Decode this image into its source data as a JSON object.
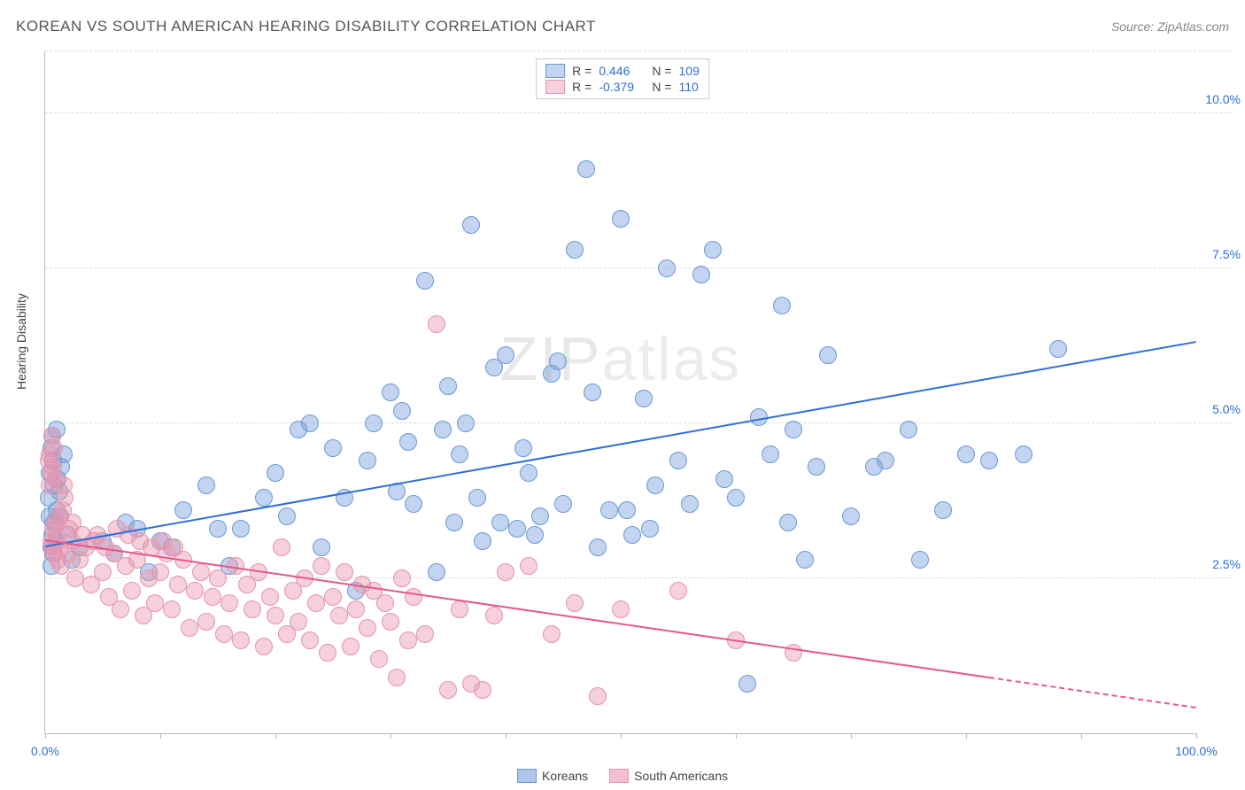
{
  "title": "KOREAN VS SOUTH AMERICAN HEARING DISABILITY CORRELATION CHART",
  "source_prefix": "Source: ",
  "source_name": "ZipAtlas.com",
  "ylabel": "Hearing Disability",
  "watermark_bold": "ZIP",
  "watermark_thin": "atlas",
  "xlim": [
    0,
    100
  ],
  "ylim": [
    0,
    11
  ],
  "x_ticks": [
    0,
    50,
    100
  ],
  "x_tick_labels": [
    "0.0%",
    "",
    "100.0%"
  ],
  "x_minor_ticks": [
    10,
    20,
    30,
    40,
    60,
    70,
    80,
    90
  ],
  "y_ticks": [
    2.5,
    5.0,
    7.5,
    10.0
  ],
  "y_tick_labels": [
    "2.5%",
    "5.0%",
    "7.5%",
    "10.0%"
  ],
  "x_tick_label_color": "#2e6fd6",
  "y_tick_label_color": "#2e6fd6",
  "grid_color": "#dddddd",
  "background_color": "#ffffff",
  "series": [
    {
      "name": "Koreans",
      "fill": "rgba(120,160,220,0.45)",
      "stroke": "#6a9ad4",
      "line_color": "#2e6fd6",
      "marker_r": 9,
      "R_label": "R =",
      "R": "0.446",
      "N_label": "N =",
      "N": "109",
      "trend": {
        "x0": 0,
        "y0": 3.0,
        "x1": 100,
        "y1": 6.3,
        "solid_to": 100
      },
      "points": [
        [
          0.5,
          3.0
        ],
        [
          0.6,
          3.2
        ],
        [
          0.7,
          2.9
        ],
        [
          0.8,
          3.4
        ],
        [
          0.9,
          3.1
        ],
        [
          1.0,
          3.6
        ],
        [
          1.1,
          4.1
        ],
        [
          1.2,
          3.9
        ],
        [
          1.3,
          3.5
        ],
        [
          1.4,
          4.3
        ],
        [
          1.6,
          4.5
        ],
        [
          0.4,
          4.2
        ],
        [
          0.5,
          4.6
        ],
        [
          0.3,
          3.8
        ],
        [
          2.0,
          3.2
        ],
        [
          2.3,
          2.8
        ],
        [
          3.0,
          3.0
        ],
        [
          5.0,
          3.1
        ],
        [
          6.0,
          2.9
        ],
        [
          7.0,
          3.4
        ],
        [
          8.0,
          3.3
        ],
        [
          9.0,
          2.6
        ],
        [
          10.0,
          3.1
        ],
        [
          11.0,
          3.0
        ],
        [
          12.0,
          3.6
        ],
        [
          14.0,
          4.0
        ],
        [
          15.0,
          3.3
        ],
        [
          16.0,
          2.7
        ],
        [
          17.0,
          3.3
        ],
        [
          19.0,
          3.8
        ],
        [
          20.0,
          4.2
        ],
        [
          21.0,
          3.5
        ],
        [
          22.0,
          4.9
        ],
        [
          23.0,
          5.0
        ],
        [
          24.0,
          3.0
        ],
        [
          25.0,
          4.6
        ],
        [
          26.0,
          3.8
        ],
        [
          27.0,
          2.3
        ],
        [
          28.0,
          4.4
        ],
        [
          30.0,
          5.5
        ],
        [
          31.0,
          5.2
        ],
        [
          32.0,
          3.7
        ],
        [
          33.0,
          7.3
        ],
        [
          34.0,
          2.6
        ],
        [
          35.0,
          5.6
        ],
        [
          36.0,
          4.5
        ],
        [
          37.0,
          8.2
        ],
        [
          38.0,
          3.1
        ],
        [
          39.0,
          5.9
        ],
        [
          40.0,
          6.1
        ],
        [
          41.0,
          3.3
        ],
        [
          42.0,
          4.2
        ],
        [
          43.0,
          3.5
        ],
        [
          44.0,
          5.8
        ],
        [
          45.0,
          3.7
        ],
        [
          46.0,
          7.8
        ],
        [
          47.0,
          9.1
        ],
        [
          48.0,
          3.0
        ],
        [
          49.0,
          3.6
        ],
        [
          50.0,
          8.3
        ],
        [
          51.0,
          3.2
        ],
        [
          52.0,
          5.4
        ],
        [
          53.0,
          4.0
        ],
        [
          54.0,
          7.5
        ],
        [
          55.0,
          4.4
        ],
        [
          56.0,
          3.7
        ],
        [
          57.0,
          7.4
        ],
        [
          58.0,
          7.8
        ],
        [
          59.0,
          4.1
        ],
        [
          60.0,
          3.8
        ],
        [
          61.0,
          0.8
        ],
        [
          62.0,
          5.1
        ],
        [
          63.0,
          4.5
        ],
        [
          64.0,
          6.9
        ],
        [
          65.0,
          4.9
        ],
        [
          66.0,
          2.8
        ],
        [
          67.0,
          4.3
        ],
        [
          68.0,
          6.1
        ],
        [
          70.0,
          3.5
        ],
        [
          72.0,
          4.3
        ],
        [
          73.0,
          4.4
        ],
        [
          75.0,
          4.9
        ],
        [
          76.0,
          2.8
        ],
        [
          78.0,
          3.6
        ],
        [
          80.0,
          4.5
        ],
        [
          82.0,
          4.4
        ],
        [
          85.0,
          4.5
        ],
        [
          88.0,
          6.2
        ],
        [
          44.5,
          6.0
        ],
        [
          42.5,
          3.2
        ],
        [
          30.5,
          3.9
        ],
        [
          31.5,
          4.7
        ],
        [
          34.5,
          4.9
        ],
        [
          36.5,
          5.0
        ],
        [
          28.5,
          5.0
        ],
        [
          47.5,
          5.5
        ],
        [
          50.5,
          3.6
        ],
        [
          37.5,
          3.8
        ],
        [
          35.5,
          3.4
        ],
        [
          0.6,
          4.8
        ],
        [
          0.7,
          4.4
        ],
        [
          0.8,
          4.0
        ],
        [
          0.4,
          3.5
        ],
        [
          0.5,
          2.7
        ],
        [
          1.0,
          4.9
        ],
        [
          39.5,
          3.4
        ],
        [
          41.5,
          4.6
        ],
        [
          52.5,
          3.3
        ],
        [
          64.5,
          3.4
        ]
      ]
    },
    {
      "name": "South Americans",
      "fill": "rgba(235,150,175,0.45)",
      "stroke": "#e295ab",
      "line_color": "#e5588a",
      "marker_r": 9,
      "R_label": "R =",
      "R": "-0.379",
      "N_label": "N =",
      "N": "110",
      "trend": {
        "x0": 0,
        "y0": 3.1,
        "x1": 100,
        "y1": 0.4,
        "solid_to": 82
      },
      "points": [
        [
          0.5,
          3.1
        ],
        [
          0.6,
          3.0
        ],
        [
          0.7,
          3.3
        ],
        [
          0.8,
          2.9
        ],
        [
          0.9,
          3.4
        ],
        [
          1.0,
          3.2
        ],
        [
          1.1,
          2.8
        ],
        [
          1.2,
          3.5
        ],
        [
          1.3,
          3.0
        ],
        [
          1.4,
          2.7
        ],
        [
          1.5,
          3.6
        ],
        [
          1.6,
          4.0
        ],
        [
          1.7,
          3.8
        ],
        [
          0.4,
          4.5
        ],
        [
          0.5,
          4.2
        ],
        [
          2.0,
          2.9
        ],
        [
          2.3,
          3.1
        ],
        [
          2.6,
          2.5
        ],
        [
          3.0,
          2.8
        ],
        [
          3.5,
          3.0
        ],
        [
          4.0,
          2.4
        ],
        [
          4.5,
          3.2
        ],
        [
          5.0,
          2.6
        ],
        [
          5.5,
          2.2
        ],
        [
          6.0,
          2.9
        ],
        [
          6.5,
          2.0
        ],
        [
          7.0,
          2.7
        ],
        [
          7.5,
          2.3
        ],
        [
          8.0,
          2.8
        ],
        [
          8.5,
          1.9
        ],
        [
          9.0,
          2.5
        ],
        [
          9.5,
          2.1
        ],
        [
          10.0,
          2.6
        ],
        [
          10.5,
          2.9
        ],
        [
          11.0,
          2.0
        ],
        [
          11.5,
          2.4
        ],
        [
          12.0,
          2.8
        ],
        [
          12.5,
          1.7
        ],
        [
          13.0,
          2.3
        ],
        [
          13.5,
          2.6
        ],
        [
          14.0,
          1.8
        ],
        [
          14.5,
          2.2
        ],
        [
          15.0,
          2.5
        ],
        [
          15.5,
          1.6
        ],
        [
          16.0,
          2.1
        ],
        [
          16.5,
          2.7
        ],
        [
          17.0,
          1.5
        ],
        [
          17.5,
          2.4
        ],
        [
          18.0,
          2.0
        ],
        [
          18.5,
          2.6
        ],
        [
          19.0,
          1.4
        ],
        [
          19.5,
          2.2
        ],
        [
          20.0,
          1.9
        ],
        [
          20.5,
          3.0
        ],
        [
          21.0,
          1.6
        ],
        [
          21.5,
          2.3
        ],
        [
          22.0,
          1.8
        ],
        [
          22.5,
          2.5
        ],
        [
          23.0,
          1.5
        ],
        [
          23.5,
          2.1
        ],
        [
          24.0,
          2.7
        ],
        [
          24.5,
          1.3
        ],
        [
          25.0,
          2.2
        ],
        [
          25.5,
          1.9
        ],
        [
          26.0,
          2.6
        ],
        [
          26.5,
          1.4
        ],
        [
          27.0,
          2.0
        ],
        [
          27.5,
          2.4
        ],
        [
          28.0,
          1.7
        ],
        [
          28.5,
          2.3
        ],
        [
          29.0,
          1.2
        ],
        [
          29.5,
          2.1
        ],
        [
          30.0,
          1.8
        ],
        [
          30.5,
          0.9
        ],
        [
          31.0,
          2.5
        ],
        [
          31.5,
          1.5
        ],
        [
          32.0,
          2.2
        ],
        [
          33.0,
          1.6
        ],
        [
          34.0,
          6.6
        ],
        [
          35.0,
          0.7
        ],
        [
          36.0,
          2.0
        ],
        [
          37.0,
          0.8
        ],
        [
          38.0,
          0.7
        ],
        [
          39.0,
          1.9
        ],
        [
          40.0,
          2.6
        ],
        [
          42.0,
          2.7
        ],
        [
          44.0,
          1.6
        ],
        [
          46.0,
          2.1
        ],
        [
          48.0,
          0.6
        ],
        [
          50.0,
          2.0
        ],
        [
          55.0,
          2.3
        ],
        [
          60.0,
          1.5
        ],
        [
          65.0,
          1.3
        ],
        [
          2.1,
          3.3
        ],
        [
          2.4,
          3.4
        ],
        [
          3.2,
          3.2
        ],
        [
          4.2,
          3.1
        ],
        [
          5.2,
          3.0
        ],
        [
          6.2,
          3.3
        ],
        [
          7.2,
          3.2
        ],
        [
          8.2,
          3.1
        ],
        [
          9.2,
          3.0
        ],
        [
          10.2,
          3.1
        ],
        [
          11.2,
          3.0
        ],
        [
          0.6,
          4.8
        ],
        [
          0.7,
          4.3
        ],
        [
          0.8,
          4.6
        ],
        [
          0.4,
          4.0
        ],
        [
          0.3,
          4.4
        ],
        [
          0.9,
          4.1
        ]
      ]
    }
  ],
  "legend_bottom": [
    {
      "label": "Koreans",
      "fill": "rgba(120,160,220,0.6)",
      "stroke": "#6a9ad4"
    },
    {
      "label": "South Americans",
      "fill": "rgba(235,150,175,0.6)",
      "stroke": "#e295ab"
    }
  ]
}
